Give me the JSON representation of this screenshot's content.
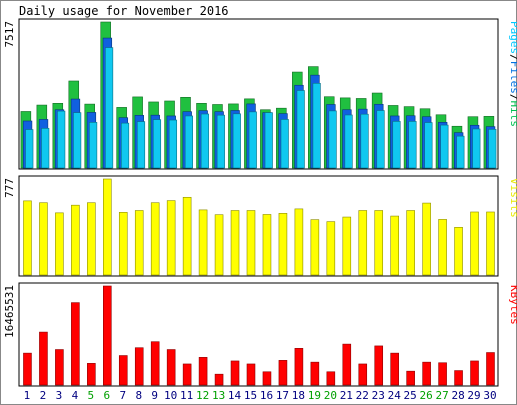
{
  "chart_data": {
    "type": "bar",
    "title": "Daily usage for November 2016",
    "categories": [
      "1",
      "2",
      "3",
      "4",
      "5",
      "6",
      "7",
      "8",
      "9",
      "10",
      "11",
      "12",
      "13",
      "14",
      "15",
      "16",
      "17",
      "18",
      "19",
      "20",
      "21",
      "22",
      "23",
      "24",
      "25",
      "26",
      "27",
      "28",
      "29",
      "30"
    ],
    "weekend_days": [
      "5",
      "6",
      "12",
      "13",
      "19",
      "20",
      "26",
      "27"
    ],
    "panels": [
      {
        "id": "hits-panel",
        "max_label": "7517",
        "ymax": 7517,
        "legend": [
          {
            "text": "Pages",
            "color": "#00c8ff"
          },
          {
            "text": "/",
            "color": "#000000"
          },
          {
            "text": "Files",
            "color": "#0070e0"
          },
          {
            "text": "/",
            "color": "#000000"
          },
          {
            "text": "Hits",
            "color": "#00c050"
          }
        ],
        "series": [
          {
            "name": "Hits",
            "color": "#20c040",
            "values": [
              2910,
              3240,
              3330,
              4480,
              3290,
              7517,
              3120,
              3660,
              3400,
              3450,
              3640,
              3330,
              3270,
              3300,
              3560,
              3000,
              3080,
              4940,
              5220,
              3670,
              3610,
              3580,
              3860,
              3220,
              3160,
              3050,
              2740,
              2150,
              2640,
              2660
            ]
          },
          {
            "name": "Files",
            "color": "#1060e0",
            "values": [
              2420,
              2500,
              3000,
              3550,
              2860,
              6690,
              2590,
              2710,
              2720,
              2680,
              2900,
              2950,
              2900,
              2960,
              3300,
              2850,
              2800,
              4260,
              4780,
              3270,
              3000,
              3030,
              3280,
              2680,
              2690,
              2640,
              2350,
              1820,
              2200,
              2130
            ]
          },
          {
            "name": "Pages",
            "color": "#10c8f0",
            "values": [
              1980,
              2040,
              2930,
              2850,
              2350,
              6200,
              2310,
              2390,
              2490,
              2470,
              2680,
              2780,
              2720,
              2790,
              2890,
              2850,
              2500,
              3990,
              4360,
              2940,
              2730,
              2770,
              2960,
              2400,
              2400,
              2340,
              2210,
              1640,
              2010,
              1990
            ]
          }
        ]
      },
      {
        "id": "visits-panel",
        "max_label": "777",
        "ymax": 777,
        "legend": [
          {
            "text": "Visits",
            "color": "#e8e800"
          }
        ],
        "series": [
          {
            "name": "Visits",
            "color": "#ffff00",
            "values": [
              600,
              585,
              503,
              565,
              585,
              777,
              507,
              522,
              585,
              602,
              629,
              527,
              488,
              522,
              522,
              490,
              499,
              535,
              448,
              432,
              469,
              522,
              522,
              477,
              522,
              582,
              450,
              386,
              510,
              510
            ]
          }
        ]
      },
      {
        "id": "kbytes-panel",
        "max_label": "16465531",
        "ymax": 16465531,
        "legend": [
          {
            "text": "KBytes",
            "color": "#ff0000"
          }
        ],
        "series": [
          {
            "name": "KBytes",
            "color": "#ff0000",
            "values": [
              5300000,
              8800000,
              5900000,
              13700000,
              3600000,
              16465531,
              4900000,
              6200000,
              7200000,
              5900000,
              3500000,
              4600000,
              1800000,
              4000000,
              3500000,
              2200000,
              4100000,
              6100000,
              3800000,
              2200000,
              6800000,
              3500000,
              6500000,
              5300000,
              2300000,
              3800000,
              3700000,
              2400000,
              4000000,
              5400000
            ]
          }
        ]
      }
    ],
    "colors": {
      "frame": "#000000",
      "plot_bg": "#ffffff",
      "outer_bg": "#ffffff",
      "weekday_label": "#000080",
      "weekend_label": "#00a000"
    }
  }
}
